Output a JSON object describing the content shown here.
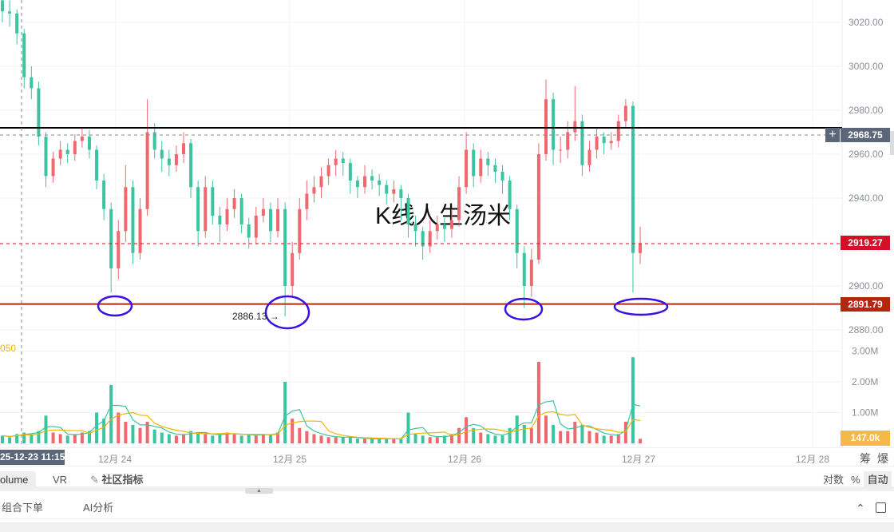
{
  "chart_data": {
    "type": "candlestick",
    "interval": "1h",
    "watermark": "K线人生汤米",
    "colors": {
      "up": "#f0686f",
      "down": "#3cc4a0",
      "support_line": "#b5260f",
      "resistance_line": "#000000",
      "ellipse": "#3a10e5",
      "vol_ma1": "#3cc4a0",
      "vol_ma2": "#f5b400",
      "last_price": "#d31027",
      "crosshair": "#5b6678",
      "volume_last": "#f7b84b"
    },
    "price_axis": {
      "ticks": [
        3020,
        3000,
        2980,
        2960,
        2940,
        2920,
        2900,
        2880
      ],
      "tick_labels": [
        "3020.00",
        "3000.00",
        "2980.00",
        "2960.00",
        "2940.00",
        "2919.27",
        "2900.00",
        "2880.00"
      ]
    },
    "price_ylim": [
      2875,
      3027
    ],
    "volume_axis": {
      "ticks": [
        3,
        2,
        1
      ],
      "tick_labels": [
        "3.00M",
        "2.00M",
        "1.00M"
      ],
      "unit": "M"
    },
    "x_tick_labels": [
      "12月 24",
      "12月 25",
      "12月 26",
      "12月 27",
      "12月 28"
    ],
    "candles": [
      [
        3030,
        3034,
        3020,
        3025
      ],
      [
        3025,
        3030,
        3018,
        3024
      ],
      [
        3024,
        3026,
        3010,
        3015
      ],
      [
        3015,
        3017,
        2990,
        2995
      ],
      [
        2995,
        3000,
        2985,
        2990
      ],
      [
        2990,
        2993,
        2964,
        2968
      ],
      [
        2968,
        2970,
        2945,
        2950
      ],
      [
        2950,
        2961,
        2947,
        2958
      ],
      [
        2958,
        2966,
        2955,
        2962
      ],
      [
        2962,
        2965,
        2956,
        2960
      ],
      [
        2960,
        2969,
        2957,
        2966
      ],
      [
        2966,
        2972,
        2963,
        2968
      ],
      [
        2968,
        2971,
        2958,
        2962
      ],
      [
        2962,
        2964,
        2944,
        2948
      ],
      [
        2948,
        2951,
        2930,
        2935
      ],
      [
        2935,
        2938,
        2897,
        2908
      ],
      [
        2908,
        2930,
        2903,
        2925
      ],
      [
        2925,
        2955,
        2920,
        2945
      ],
      [
        2945,
        2948,
        2910,
        2915
      ],
      [
        2915,
        2940,
        2912,
        2935
      ],
      [
        2935,
        2985,
        2932,
        2970
      ],
      [
        2970,
        2974,
        2958,
        2962
      ],
      [
        2962,
        2966,
        2952,
        2958
      ],
      [
        2958,
        2962,
        2950,
        2955
      ],
      [
        2955,
        2964,
        2952,
        2960
      ],
      [
        2960,
        2970,
        2956,
        2965
      ],
      [
        2965,
        2967,
        2940,
        2945
      ],
      [
        2945,
        2948,
        2918,
        2925
      ],
      [
        2925,
        2950,
        2922,
        2945
      ],
      [
        2945,
        2948,
        2928,
        2932
      ],
      [
        2932,
        2936,
        2920,
        2928
      ],
      [
        2928,
        2940,
        2925,
        2935
      ],
      [
        2935,
        2944,
        2931,
        2940
      ],
      [
        2940,
        2942,
        2924,
        2928
      ],
      [
        2928,
        2931,
        2917,
        2922
      ],
      [
        2922,
        2936,
        2919,
        2932
      ],
      [
        2932,
        2940,
        2929,
        2935
      ],
      [
        2935,
        2938,
        2920,
        2925
      ],
      [
        2925,
        2940,
        2922,
        2935
      ],
      [
        2935,
        2938,
        2886.13,
        2900
      ],
      [
        2900,
        2920,
        2895,
        2915
      ],
      [
        2915,
        2940,
        2912,
        2935
      ],
      [
        2935,
        2948,
        2930,
        2942
      ],
      [
        2942,
        2950,
        2938,
        2945
      ],
      [
        2945,
        2954,
        2940,
        2950
      ],
      [
        2950,
        2958,
        2946,
        2955
      ],
      [
        2955,
        2962,
        2950,
        2958
      ],
      [
        2958,
        2961,
        2950,
        2956
      ],
      [
        2956,
        2958,
        2942,
        2948
      ],
      [
        2948,
        2950,
        2940,
        2945
      ],
      [
        2945,
        2955,
        2942,
        2950
      ],
      [
        2950,
        2953,
        2944,
        2948
      ],
      [
        2948,
        2951,
        2941,
        2946
      ],
      [
        2946,
        2948,
        2937,
        2942
      ],
      [
        2942,
        2948,
        2938,
        2944
      ],
      [
        2944,
        2946,
        2930,
        2940
      ],
      [
        2940,
        2942,
        2922,
        2928
      ],
      [
        2928,
        2932,
        2918,
        2925
      ],
      [
        2925,
        2927,
        2912,
        2918
      ],
      [
        2918,
        2930,
        2915,
        2925
      ],
      [
        2925,
        2932,
        2921,
        2928
      ],
      [
        2928,
        2931,
        2920,
        2926
      ],
      [
        2926,
        2935,
        2922,
        2930
      ],
      [
        2930,
        2950,
        2927,
        2945
      ],
      [
        2945,
        2970,
        2942,
        2962
      ],
      [
        2962,
        2965,
        2945,
        2950
      ],
      [
        2950,
        2962,
        2947,
        2958
      ],
      [
        2958,
        2961,
        2950,
        2955
      ],
      [
        2955,
        2958,
        2947,
        2952
      ],
      [
        2952,
        2955,
        2942,
        2948
      ],
      [
        2948,
        2950,
        2930,
        2935
      ],
      [
        2935,
        2937,
        2908,
        2915
      ],
      [
        2915,
        2918,
        2890,
        2900
      ],
      [
        2900,
        2917,
        2895,
        2912
      ],
      [
        2912,
        2965,
        2910,
        2960
      ],
      [
        2960,
        2994,
        2957,
        2985
      ],
      [
        2985,
        2988,
        2955,
        2962
      ],
      [
        2962,
        2968,
        2956,
        2962
      ],
      [
        2962,
        2975,
        2958,
        2970
      ],
      [
        2970,
        2991,
        2966,
        2975
      ],
      [
        2975,
        2978,
        2950,
        2955
      ],
      [
        2955,
        2966,
        2952,
        2962
      ],
      [
        2962,
        2972,
        2958,
        2968
      ],
      [
        2968,
        2970,
        2960,
        2965
      ],
      [
        2965,
        2970,
        2962,
        2966
      ],
      [
        2966,
        2978,
        2963,
        2975
      ],
      [
        2975,
        2985,
        2972,
        2982
      ],
      [
        2982,
        2984,
        2897,
        2915
      ],
      [
        2915,
        2927,
        2910,
        2919.27
      ]
    ],
    "volumes": [
      0.25,
      0.2,
      0.3,
      0.35,
      0.3,
      0.4,
      0.9,
      0.35,
      0.3,
      0.25,
      0.3,
      0.35,
      0.4,
      1.0,
      0.8,
      1.9,
      1.0,
      0.7,
      0.6,
      0.5,
      0.7,
      0.45,
      0.35,
      0.3,
      0.25,
      0.3,
      0.4,
      0.35,
      0.3,
      0.25,
      0.3,
      0.35,
      0.3,
      0.25,
      0.3,
      0.25,
      0.3,
      0.3,
      0.35,
      2.0,
      0.8,
      0.5,
      0.4,
      0.3,
      0.25,
      0.2,
      0.2,
      0.2,
      0.2,
      0.15,
      0.15,
      0.15,
      0.15,
      0.15,
      0.15,
      0.15,
      1.0,
      0.3,
      0.25,
      0.2,
      0.2,
      0.25,
      0.3,
      0.5,
      0.85,
      0.5,
      0.35,
      0.3,
      0.25,
      0.25,
      0.5,
      0.9,
      0.6,
      0.5,
      2.65,
      0.9,
      0.6,
      0.4,
      0.4,
      0.7,
      0.6,
      0.4,
      0.35,
      0.25,
      0.25,
      0.3,
      0.7,
      2.8,
      0.147
    ],
    "horizontal_lines": [
      {
        "price": 2972,
        "style": "solid",
        "color": "#000000"
      },
      {
        "price": 2891.79,
        "label": "2891.79",
        "style": "solid",
        "color": "#b5260f"
      }
    ],
    "last_price": {
      "value": 2919.27,
      "label": "2919.27"
    },
    "crosshair": {
      "price_label": "2968.75",
      "time_label": "25-12-23 11:15"
    },
    "low_marker": {
      "label": "2886.13",
      "price": 2886.13
    },
    "volume_last_label": "147.0k",
    "vol_legend_fragment": "050"
  },
  "toolbar": {
    "right_icons": [
      "筹",
      "爆"
    ],
    "tabs": [
      "olume",
      "VR"
    ],
    "community_label": "社区指标",
    "scale_options": [
      "对数",
      "%",
      "自动"
    ],
    "active_scale": "自动"
  },
  "bottom_panel": {
    "tabs": [
      "组合下单",
      "AI分析"
    ]
  }
}
